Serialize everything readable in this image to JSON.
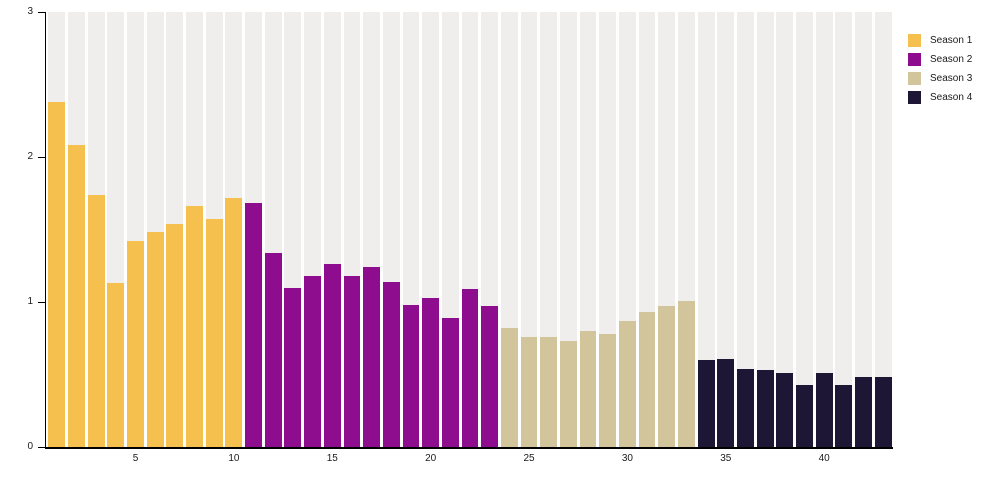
{
  "chart_data": {
    "type": "bar",
    "title": "",
    "xlabel": "",
    "ylabel": "",
    "ylim": [
      0,
      3
    ],
    "y_ticks": [
      0,
      1,
      2,
      3
    ],
    "x_ticks": [
      5,
      10,
      15,
      20,
      25,
      30,
      35,
      40
    ],
    "n_bars": 43,
    "grid": "vertical-bands",
    "legend_position": "top-right-outside",
    "colors": {
      "band": "#efeeec",
      "axis": "#000000",
      "text": "#1a1a1a",
      "season1": "#f5c04e",
      "season2": "#8e0d8e",
      "season3": "#d3c59b",
      "season4": "#1e1635"
    },
    "series": [
      {
        "name": "Season 1",
        "color": "#f5c04e",
        "start_episode": 1,
        "values": [
          2.38,
          2.08,
          1.74,
          1.13,
          1.42,
          1.48,
          1.54,
          1.66,
          1.57,
          1.72
        ]
      },
      {
        "name": "Season 2",
        "color": "#8e0d8e",
        "start_episode": 11,
        "values": [
          1.68,
          1.34,
          1.1,
          1.18,
          1.26,
          1.18,
          1.24,
          1.14,
          0.98,
          1.03,
          0.89,
          1.09,
          0.97
        ]
      },
      {
        "name": "Season 3",
        "color": "#d3c59b",
        "start_episode": 24,
        "values": [
          0.82,
          0.76,
          0.76,
          0.73,
          0.8,
          0.78,
          0.87,
          0.93,
          0.97,
          1.01
        ]
      },
      {
        "name": "Season 4",
        "color": "#1e1635",
        "start_episode": 34,
        "values": [
          0.6,
          0.61,
          0.54,
          0.53,
          0.51,
          0.43,
          0.51,
          0.43,
          0.48,
          0.48
        ]
      }
    ]
  }
}
